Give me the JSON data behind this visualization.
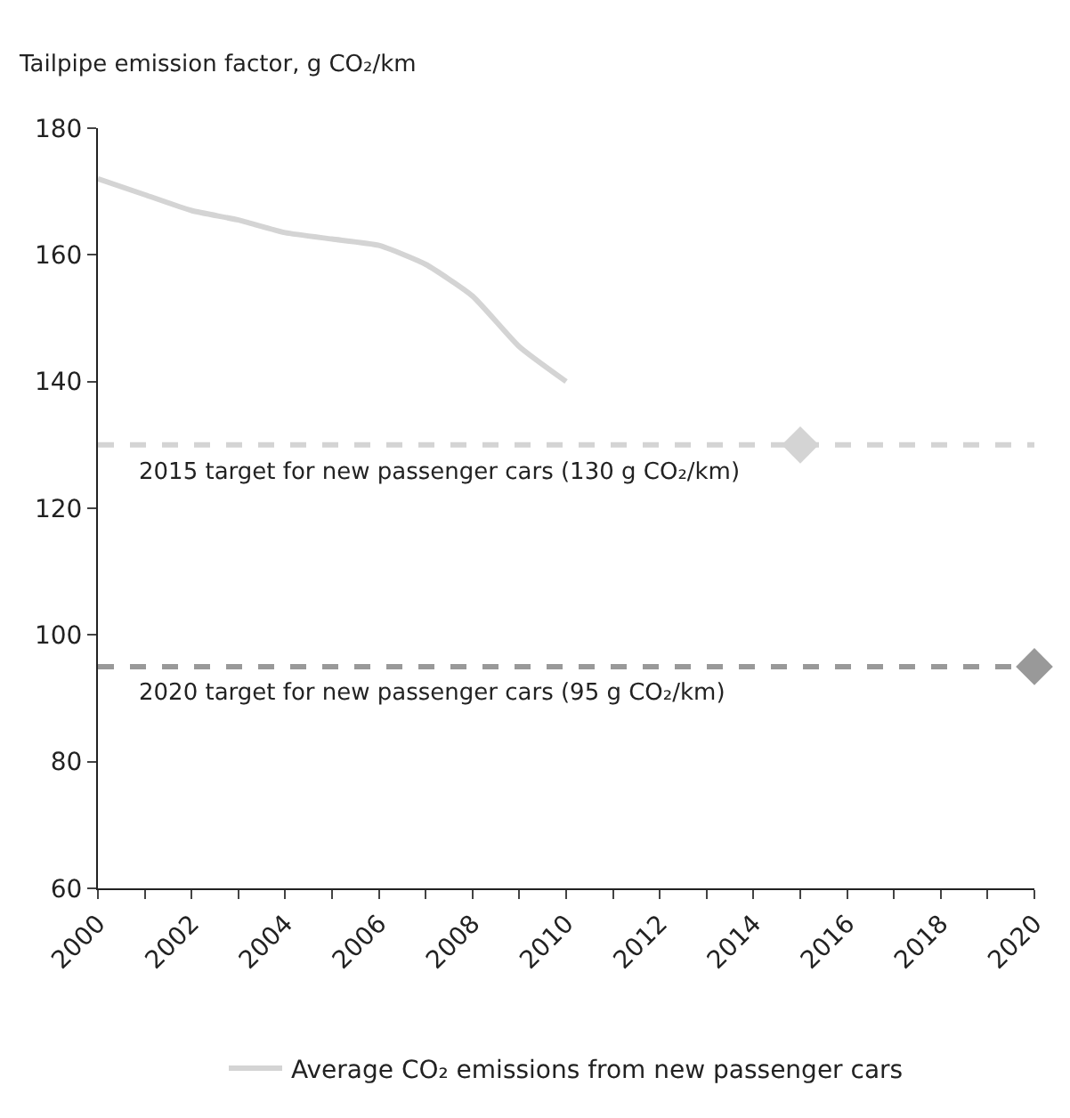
{
  "chart_data": {
    "type": "line",
    "ylabel": "Tailpipe emission factor, g CO₂/km",
    "x": [
      2000,
      2001,
      2002,
      2003,
      2004,
      2005,
      2006,
      2007,
      2008,
      2009,
      2010
    ],
    "series": [
      {
        "name": "Average CO₂ emissions from new passenger cars",
        "color": "#d4d4d4",
        "values": [
          172,
          169.5,
          167,
          165.5,
          163.5,
          162.5,
          161.5,
          158.5,
          153.5,
          145.5,
          140
        ]
      },
      {
        "type": "scatter",
        "marker": "diamond",
        "color": "#d4d4d4",
        "x": [
          2015
        ],
        "values": [
          130
        ]
      },
      {
        "type": "scatter",
        "marker": "diamond",
        "color": "#999999",
        "x": [
          2020
        ],
        "values": [
          95
        ]
      }
    ],
    "ref_lines": [
      {
        "axis": "y",
        "value": 130,
        "label": "2015 target for new passenger cars (130 g CO₂/km)",
        "color": "#d4d4d4",
        "line_style": "dashed"
      },
      {
        "axis": "y",
        "value": 95,
        "label": "2020 target for new passenger cars (95 g CO₂/km)",
        "color": "#999999",
        "line_style": "dashed"
      }
    ],
    "xlim": [
      2000,
      2020
    ],
    "xticks": [
      2000,
      {
        "value": 2001,
        "label": null
      },
      2002,
      {
        "value": 2003,
        "label": null
      },
      2004,
      {
        "value": 2005,
        "label": null
      },
      2006,
      {
        "value": 2007,
        "label": null
      },
      2008,
      {
        "value": 2009,
        "label": null
      },
      2010,
      {
        "value": 2011,
        "label": null
      },
      2012,
      {
        "value": 2013,
        "label": null
      },
      2014,
      {
        "value": 2015,
        "label": null
      },
      2016,
      {
        "value": 2017,
        "label": null
      },
      2018,
      {
        "value": 2019,
        "label": null
      },
      2020
    ],
    "ylim": [
      60,
      180
    ],
    "yticks": [
      60,
      80,
      100,
      120,
      140,
      160,
      180
    ],
    "grid": false,
    "legend": "bottom",
    "line_style": "solid"
  }
}
